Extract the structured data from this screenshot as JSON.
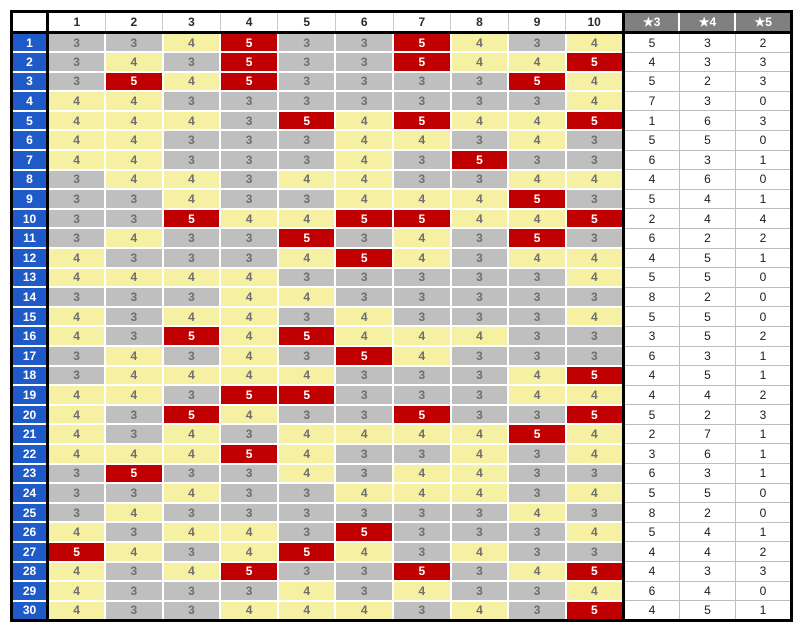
{
  "table": {
    "corner_label": "",
    "column_headers": [
      "1",
      "2",
      "3",
      "4",
      "5",
      "6",
      "7",
      "8",
      "9",
      "10"
    ],
    "star_headers": [
      "★3",
      "★4",
      "★5"
    ],
    "rows": [
      {
        "label": "1",
        "values": [
          3,
          3,
          4,
          5,
          3,
          3,
          5,
          4,
          3,
          4
        ],
        "counts": [
          5,
          3,
          2
        ]
      },
      {
        "label": "2",
        "values": [
          3,
          4,
          3,
          5,
          3,
          3,
          5,
          4,
          4,
          5
        ],
        "counts": [
          4,
          3,
          3
        ]
      },
      {
        "label": "3",
        "values": [
          3,
          5,
          4,
          5,
          3,
          3,
          3,
          3,
          5,
          4
        ],
        "counts": [
          5,
          2,
          3
        ]
      },
      {
        "label": "4",
        "values": [
          4,
          4,
          3,
          3,
          3,
          3,
          3,
          3,
          3,
          4
        ],
        "counts": [
          7,
          3,
          0
        ]
      },
      {
        "label": "5",
        "values": [
          4,
          4,
          4,
          3,
          5,
          4,
          5,
          4,
          4,
          5
        ],
        "counts": [
          1,
          6,
          3
        ]
      },
      {
        "label": "6",
        "values": [
          4,
          4,
          3,
          3,
          3,
          4,
          4,
          3,
          4,
          3
        ],
        "counts": [
          5,
          5,
          0
        ]
      },
      {
        "label": "7",
        "values": [
          4,
          4,
          3,
          3,
          3,
          4,
          3,
          5,
          3,
          3
        ],
        "counts": [
          6,
          3,
          1
        ]
      },
      {
        "label": "8",
        "values": [
          3,
          4,
          4,
          3,
          4,
          4,
          3,
          3,
          4,
          4
        ],
        "counts": [
          4,
          6,
          0
        ]
      },
      {
        "label": "9",
        "values": [
          3,
          3,
          4,
          3,
          3,
          4,
          4,
          4,
          5,
          3
        ],
        "counts": [
          5,
          4,
          1
        ]
      },
      {
        "label": "10",
        "values": [
          3,
          3,
          5,
          4,
          4,
          5,
          5,
          4,
          4,
          5
        ],
        "counts": [
          2,
          4,
          4
        ]
      },
      {
        "label": "11",
        "values": [
          3,
          4,
          3,
          3,
          5,
          3,
          4,
          3,
          5,
          3
        ],
        "counts": [
          6,
          2,
          2
        ]
      },
      {
        "label": "12",
        "values": [
          4,
          3,
          3,
          3,
          4,
          5,
          4,
          3,
          4,
          4
        ],
        "counts": [
          4,
          5,
          1
        ]
      },
      {
        "label": "13",
        "values": [
          4,
          4,
          4,
          4,
          3,
          3,
          3,
          3,
          3,
          4
        ],
        "counts": [
          5,
          5,
          0
        ]
      },
      {
        "label": "14",
        "values": [
          3,
          3,
          3,
          4,
          4,
          3,
          3,
          3,
          3,
          3
        ],
        "counts": [
          8,
          2,
          0
        ]
      },
      {
        "label": "15",
        "values": [
          4,
          3,
          4,
          4,
          3,
          4,
          3,
          3,
          3,
          4
        ],
        "counts": [
          5,
          5,
          0
        ]
      },
      {
        "label": "16",
        "values": [
          4,
          3,
          5,
          4,
          5,
          4,
          4,
          4,
          3,
          3
        ],
        "counts": [
          3,
          5,
          2
        ]
      },
      {
        "label": "17",
        "values": [
          3,
          4,
          3,
          4,
          3,
          5,
          4,
          3,
          3,
          3
        ],
        "counts": [
          6,
          3,
          1
        ]
      },
      {
        "label": "18",
        "values": [
          3,
          4,
          4,
          4,
          4,
          3,
          3,
          3,
          4,
          5
        ],
        "counts": [
          4,
          5,
          1
        ]
      },
      {
        "label": "19",
        "values": [
          4,
          4,
          3,
          5,
          5,
          3,
          3,
          3,
          4,
          4
        ],
        "counts": [
          4,
          4,
          2
        ]
      },
      {
        "label": "20",
        "values": [
          4,
          3,
          5,
          4,
          3,
          3,
          5,
          3,
          3,
          5
        ],
        "counts": [
          5,
          2,
          3
        ]
      },
      {
        "label": "21",
        "values": [
          4,
          3,
          4,
          3,
          4,
          4,
          4,
          4,
          5,
          4
        ],
        "counts": [
          2,
          7,
          1
        ]
      },
      {
        "label": "22",
        "values": [
          4,
          4,
          4,
          5,
          4,
          3,
          3,
          4,
          3,
          4
        ],
        "counts": [
          3,
          6,
          1
        ]
      },
      {
        "label": "23",
        "values": [
          3,
          5,
          3,
          3,
          4,
          3,
          4,
          4,
          3,
          3
        ],
        "counts": [
          6,
          3,
          1
        ]
      },
      {
        "label": "24",
        "values": [
          3,
          3,
          4,
          3,
          3,
          4,
          4,
          4,
          3,
          4
        ],
        "counts": [
          5,
          5,
          0
        ]
      },
      {
        "label": "25",
        "values": [
          3,
          4,
          3,
          3,
          3,
          3,
          3,
          3,
          4,
          3
        ],
        "counts": [
          8,
          2,
          0
        ]
      },
      {
        "label": "26",
        "values": [
          4,
          3,
          4,
          4,
          3,
          5,
          3,
          3,
          3,
          4
        ],
        "counts": [
          5,
          4,
          1
        ]
      },
      {
        "label": "27",
        "values": [
          5,
          4,
          3,
          4,
          5,
          4,
          3,
          4,
          3,
          3
        ],
        "counts": [
          4,
          4,
          2
        ]
      },
      {
        "label": "28",
        "values": [
          4,
          3,
          4,
          5,
          3,
          3,
          5,
          3,
          4,
          5
        ],
        "counts": [
          4,
          3,
          3
        ]
      },
      {
        "label": "29",
        "values": [
          4,
          3,
          3,
          3,
          4,
          3,
          4,
          3,
          3,
          4
        ],
        "counts": [
          6,
          4,
          0
        ]
      },
      {
        "label": "30",
        "values": [
          4,
          3,
          3,
          4,
          4,
          4,
          3,
          4,
          3,
          5
        ],
        "counts": [
          4,
          5,
          1
        ]
      }
    ]
  },
  "colors": {
    "row_header_bg": "#1E5AC8",
    "row_header_text": "#FFFFFF",
    "star_header_bg": "#808080",
    "star_header_text": "#FFFFFF",
    "value3_bg": "#BFBFBF",
    "value4_bg": "#F5F0A2",
    "value5_bg": "#C00000",
    "value5_text": "#FFFFFF",
    "value_text": "#6E6E6E",
    "count_text": "#1A1A1A"
  }
}
